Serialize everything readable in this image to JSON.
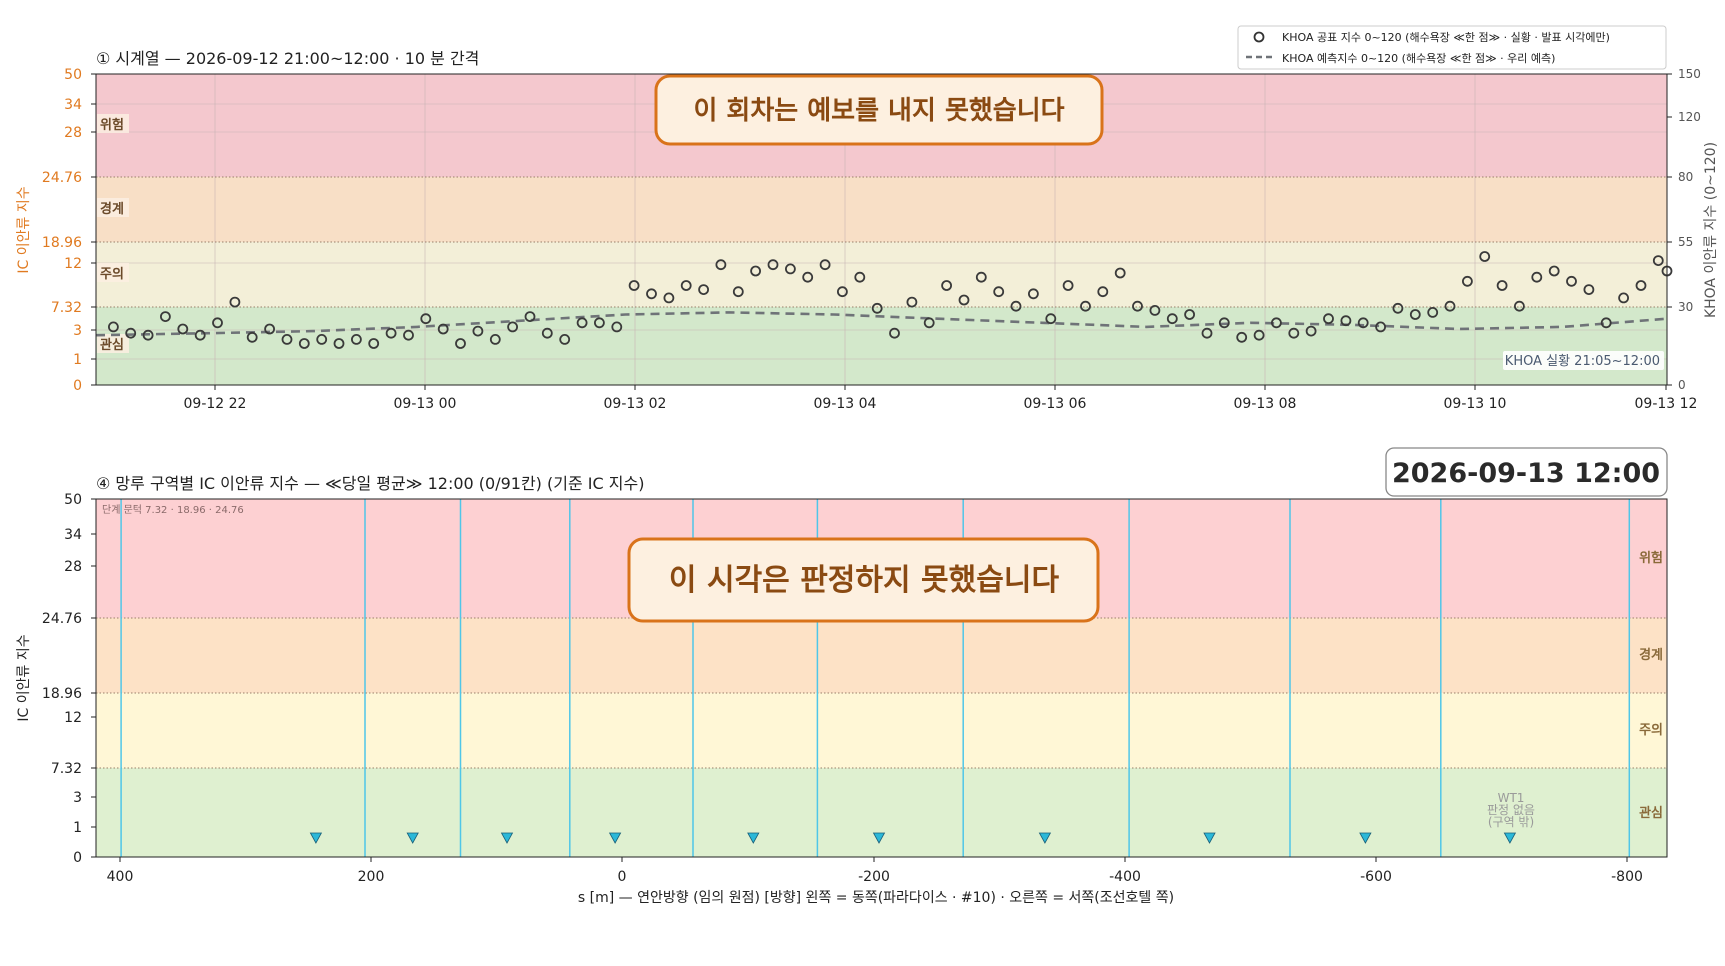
{
  "colors": {
    "danger": "#f4c8ce",
    "warning": "#f8dfc6",
    "caution": "#f3efd8",
    "interest": "#d3e8cb",
    "danger2": "#fdd0d2",
    "warning2": "#fde2c6",
    "caution2": "#fff7d6",
    "interest2": "#dff0d0",
    "orange_axis": "#e07a20",
    "banner_fill": "#fdf0e0",
    "banner_stroke": "#d9731a",
    "banner_text": "#8a4a12",
    "cyan": "#4fc6e8",
    "dots": "#3a3a3a",
    "dash": "#6f7378"
  },
  "chart1": {
    "title": "① 시계열 — 2026-09-12 21:00~12:00 · 10 분 간격",
    "ylabel_left": "IC 이안류 지수",
    "ylabel_right": "KHOA 이안류 지수 (0~120)",
    "banner": "이 회차는 예보를 내지 못했습니다",
    "legend": [
      "KHOA 공표 지수 0~120 (해수욕장 ≪한 점≫ · 실황 · 발표 시각에만)",
      "KHOA 예측지수 0~120 (해수욕장 ≪한 점≫ · 우리 예측)"
    ],
    "badge": "KHOA 실황 21:05~12:00",
    "zone_labels": [
      "위험",
      "경계",
      "주의",
      "관심"
    ],
    "left_ticks": [
      "0",
      "1",
      "3",
      "7.32",
      "12",
      "18.96",
      "24.76",
      "28",
      "34",
      "50"
    ],
    "right_ticks": [
      "0",
      "30",
      "55",
      "80",
      "120",
      "150"
    ],
    "x_ticks": [
      "09-12 22",
      "09-13 00",
      "09-13 02",
      "09-13 04",
      "09-13 06",
      "09-13 08",
      "09-13 10",
      "09-13 12"
    ]
  },
  "chart2": {
    "title": "④ 망루 구역별 IC 이안류 지수 — ≪당일 평균≫ 12:00  (0/91칸)   (기준 IC 지수)",
    "timestamp": "2026-09-13  12:00",
    "banner": "이 시각은 판정하지 못했습니다",
    "thresholds_note": "단계 문턱 7.32 · 18.96 · 24.76",
    "ylabel": "IC 이안류 지수",
    "xlabel": "s [m] — 연안방향 (임의 원점)     [방향] 왼쪽 = 동쪽(파라다이스 · #10) · 오른쪽 = 서쪽(조선호텔 쪽)",
    "zone_labels": [
      "위험",
      "경계",
      "주의",
      "관심"
    ],
    "y_ticks": [
      "0",
      "1",
      "3",
      "7.32",
      "12",
      "18.96",
      "24.76",
      "28",
      "34",
      "50"
    ],
    "x_ticks": [
      "400",
      "200",
      "0",
      "-200",
      "-400",
      "-600",
      "-800"
    ],
    "wt1_lines": [
      "WT1",
      "판정 없음",
      "(구역 밖)"
    ]
  },
  "chart_data": [
    {
      "type": "scatter",
      "title": "① 시계열 — 2026-09-12 21:00~12:00 · 10 분 간격",
      "x_unit": "time",
      "x_range": [
        "2026-09-12 20:55",
        "2026-09-13 12:00"
      ],
      "y_left": {
        "label": "IC 이안류 지수",
        "ticks": [
          0,
          1,
          3,
          7.32,
          12,
          18.96,
          24.76,
          28,
          34,
          50
        ]
      },
      "y_right": {
        "label": "KHOA 이안류 지수 (0~120)",
        "ticks": [
          0,
          30,
          55,
          80,
          120,
          150
        ],
        "range": [
          0,
          150
        ]
      },
      "series": [
        {
          "name": "KHOA 공표 지수 0~120 (해수욕장 ≪한 점≫ · 실황 · 발표 시각에만)",
          "marker": "open-circle",
          "x": [
            "2026-09-12 21:05",
            "2026-09-12 21:15",
            "2026-09-12 21:25",
            "2026-09-12 21:35",
            "2026-09-12 21:45",
            "2026-09-12 21:55",
            "2026-09-12 22:05",
            "2026-09-12 22:15",
            "2026-09-12 22:25",
            "2026-09-12 22:35",
            "2026-09-12 22:45",
            "2026-09-12 22:55",
            "2026-09-12 23:05",
            "2026-09-12 23:15",
            "2026-09-12 23:25",
            "2026-09-12 23:35",
            "2026-09-12 23:45",
            "2026-09-12 23:55",
            "2026-09-13 00:05",
            "2026-09-13 00:15",
            "2026-09-13 00:25",
            "2026-09-13 00:35",
            "2026-09-13 00:45",
            "2026-09-13 00:55",
            "2026-09-13 01:05",
            "2026-09-13 01:15",
            "2026-09-13 01:25",
            "2026-09-13 01:35",
            "2026-09-13 01:45",
            "2026-09-13 01:55",
            "2026-09-13 02:05",
            "2026-09-13 02:15",
            "2026-09-13 02:25",
            "2026-09-13 02:35",
            "2026-09-13 02:45",
            "2026-09-13 02:55",
            "2026-09-13 03:05",
            "2026-09-13 03:15",
            "2026-09-13 03:25",
            "2026-09-13 03:35",
            "2026-09-13 03:45",
            "2026-09-13 03:55",
            "2026-09-13 04:05",
            "2026-09-13 04:15",
            "2026-09-13 04:25",
            "2026-09-13 04:35",
            "2026-09-13 04:45",
            "2026-09-13 04:55",
            "2026-09-13 05:05",
            "2026-09-13 05:15",
            "2026-09-13 05:25",
            "2026-09-13 05:35",
            "2026-09-13 05:45",
            "2026-09-13 05:55",
            "2026-09-13 06:05",
            "2026-09-13 06:15",
            "2026-09-13 06:25",
            "2026-09-13 06:35",
            "2026-09-13 06:45",
            "2026-09-13 06:55",
            "2026-09-13 07:05",
            "2026-09-13 07:15",
            "2026-09-13 07:25",
            "2026-09-13 07:35",
            "2026-09-13 07:45",
            "2026-09-13 07:55",
            "2026-09-13 08:05",
            "2026-09-13 08:15",
            "2026-09-13 08:25",
            "2026-09-13 08:35",
            "2026-09-13 08:45",
            "2026-09-13 08:55",
            "2026-09-13 09:05",
            "2026-09-13 09:15",
            "2026-09-13 09:25",
            "2026-09-13 09:35",
            "2026-09-13 09:45",
            "2026-09-13 09:55",
            "2026-09-13 10:05",
            "2026-09-13 10:15",
            "2026-09-13 10:25",
            "2026-09-13 10:35",
            "2026-09-13 10:45",
            "2026-09-13 10:55",
            "2026-09-13 11:05",
            "2026-09-13 11:15",
            "2026-09-13 11:25",
            "2026-09-13 11:35",
            "2026-09-13 11:45",
            "2026-09-13 11:55",
            "2026-09-13 12:00"
          ],
          "y": [
            28,
            25,
            24,
            33,
            27,
            24,
            30,
            40,
            23,
            27,
            22,
            20,
            22,
            20,
            22,
            20,
            25,
            24,
            32,
            27,
            20,
            26,
            22,
            28,
            33,
            25,
            22,
            30,
            30,
            28,
            48,
            44,
            42,
            48,
            46,
            58,
            45,
            55,
            58,
            56,
            52,
            58,
            45,
            52,
            37,
            25,
            40,
            30,
            48,
            41,
            52,
            45,
            38,
            44,
            32,
            48,
            38,
            45,
            54,
            38,
            36,
            32,
            34,
            25,
            30,
            23,
            24,
            30,
            25,
            26,
            32,
            31,
            30,
            28,
            37,
            34,
            35,
            38,
            50,
            62,
            48,
            38,
            52,
            55,
            50,
            46,
            30,
            42,
            48,
            60,
            55
          ]
        },
        {
          "name": "KHOA 예측지수 0~120 (해수욕장 ≪한 점≫ · 우리 예측)",
          "line": "dashed",
          "x": [
            "2026-09-12 20:55",
            "2026-09-12 22:00",
            "2026-09-12 23:00",
            "2026-09-13 00:00",
            "2026-09-13 01:00",
            "2026-09-13 02:00",
            "2026-09-13 03:00",
            "2026-09-13 04:00",
            "2026-09-13 05:00",
            "2026-09-13 06:00",
            "2026-09-13 07:00",
            "2026-09-13 08:00",
            "2026-09-13 09:00",
            "2026-09-13 10:00",
            "2026-09-13 11:00",
            "2026-09-13 12:00"
          ],
          "y": [
            24,
            25,
            26,
            28,
            31,
            34,
            35,
            34,
            32,
            30,
            28,
            30,
            29,
            27,
            28,
            32
          ]
        }
      ],
      "annotation": "이 회차는 예보를 내지 못했습니다",
      "badge": "KHOA 실황 21:05~12:00",
      "legend_position": "top-right",
      "grid": true
    },
    {
      "type": "bar",
      "title": "④ 망루 구역별 IC 이안류 지수 — ≪당일 평균≫ 12:00  (0/91칸)   (기준 IC 지수)",
      "xlabel": "s [m] — 연안방향 (임의 원점)     [방향] 왼쪽 = 동쪽(파라다이스 · #10) · 오른쪽 = 서쪽(조선호텔 쪽)",
      "ylabel": "IC 이안류 지수",
      "x_range": [
        420,
        -830
      ],
      "y_ticks": [
        0,
        1,
        3,
        7.32,
        12,
        18.96,
        24.76,
        28,
        34,
        50
      ],
      "zone_boundaries_x": [
        400,
        206,
        130,
        43,
        -55,
        -154,
        -270,
        -402,
        -530,
        -650,
        -800
      ],
      "markers_x": [
        245,
        168,
        93,
        7,
        -103,
        -203,
        -335,
        -466,
        -590,
        -705
      ],
      "values": [],
      "annotation": "이 시각은 판정하지 못했습니다",
      "grid": false
    }
  ]
}
